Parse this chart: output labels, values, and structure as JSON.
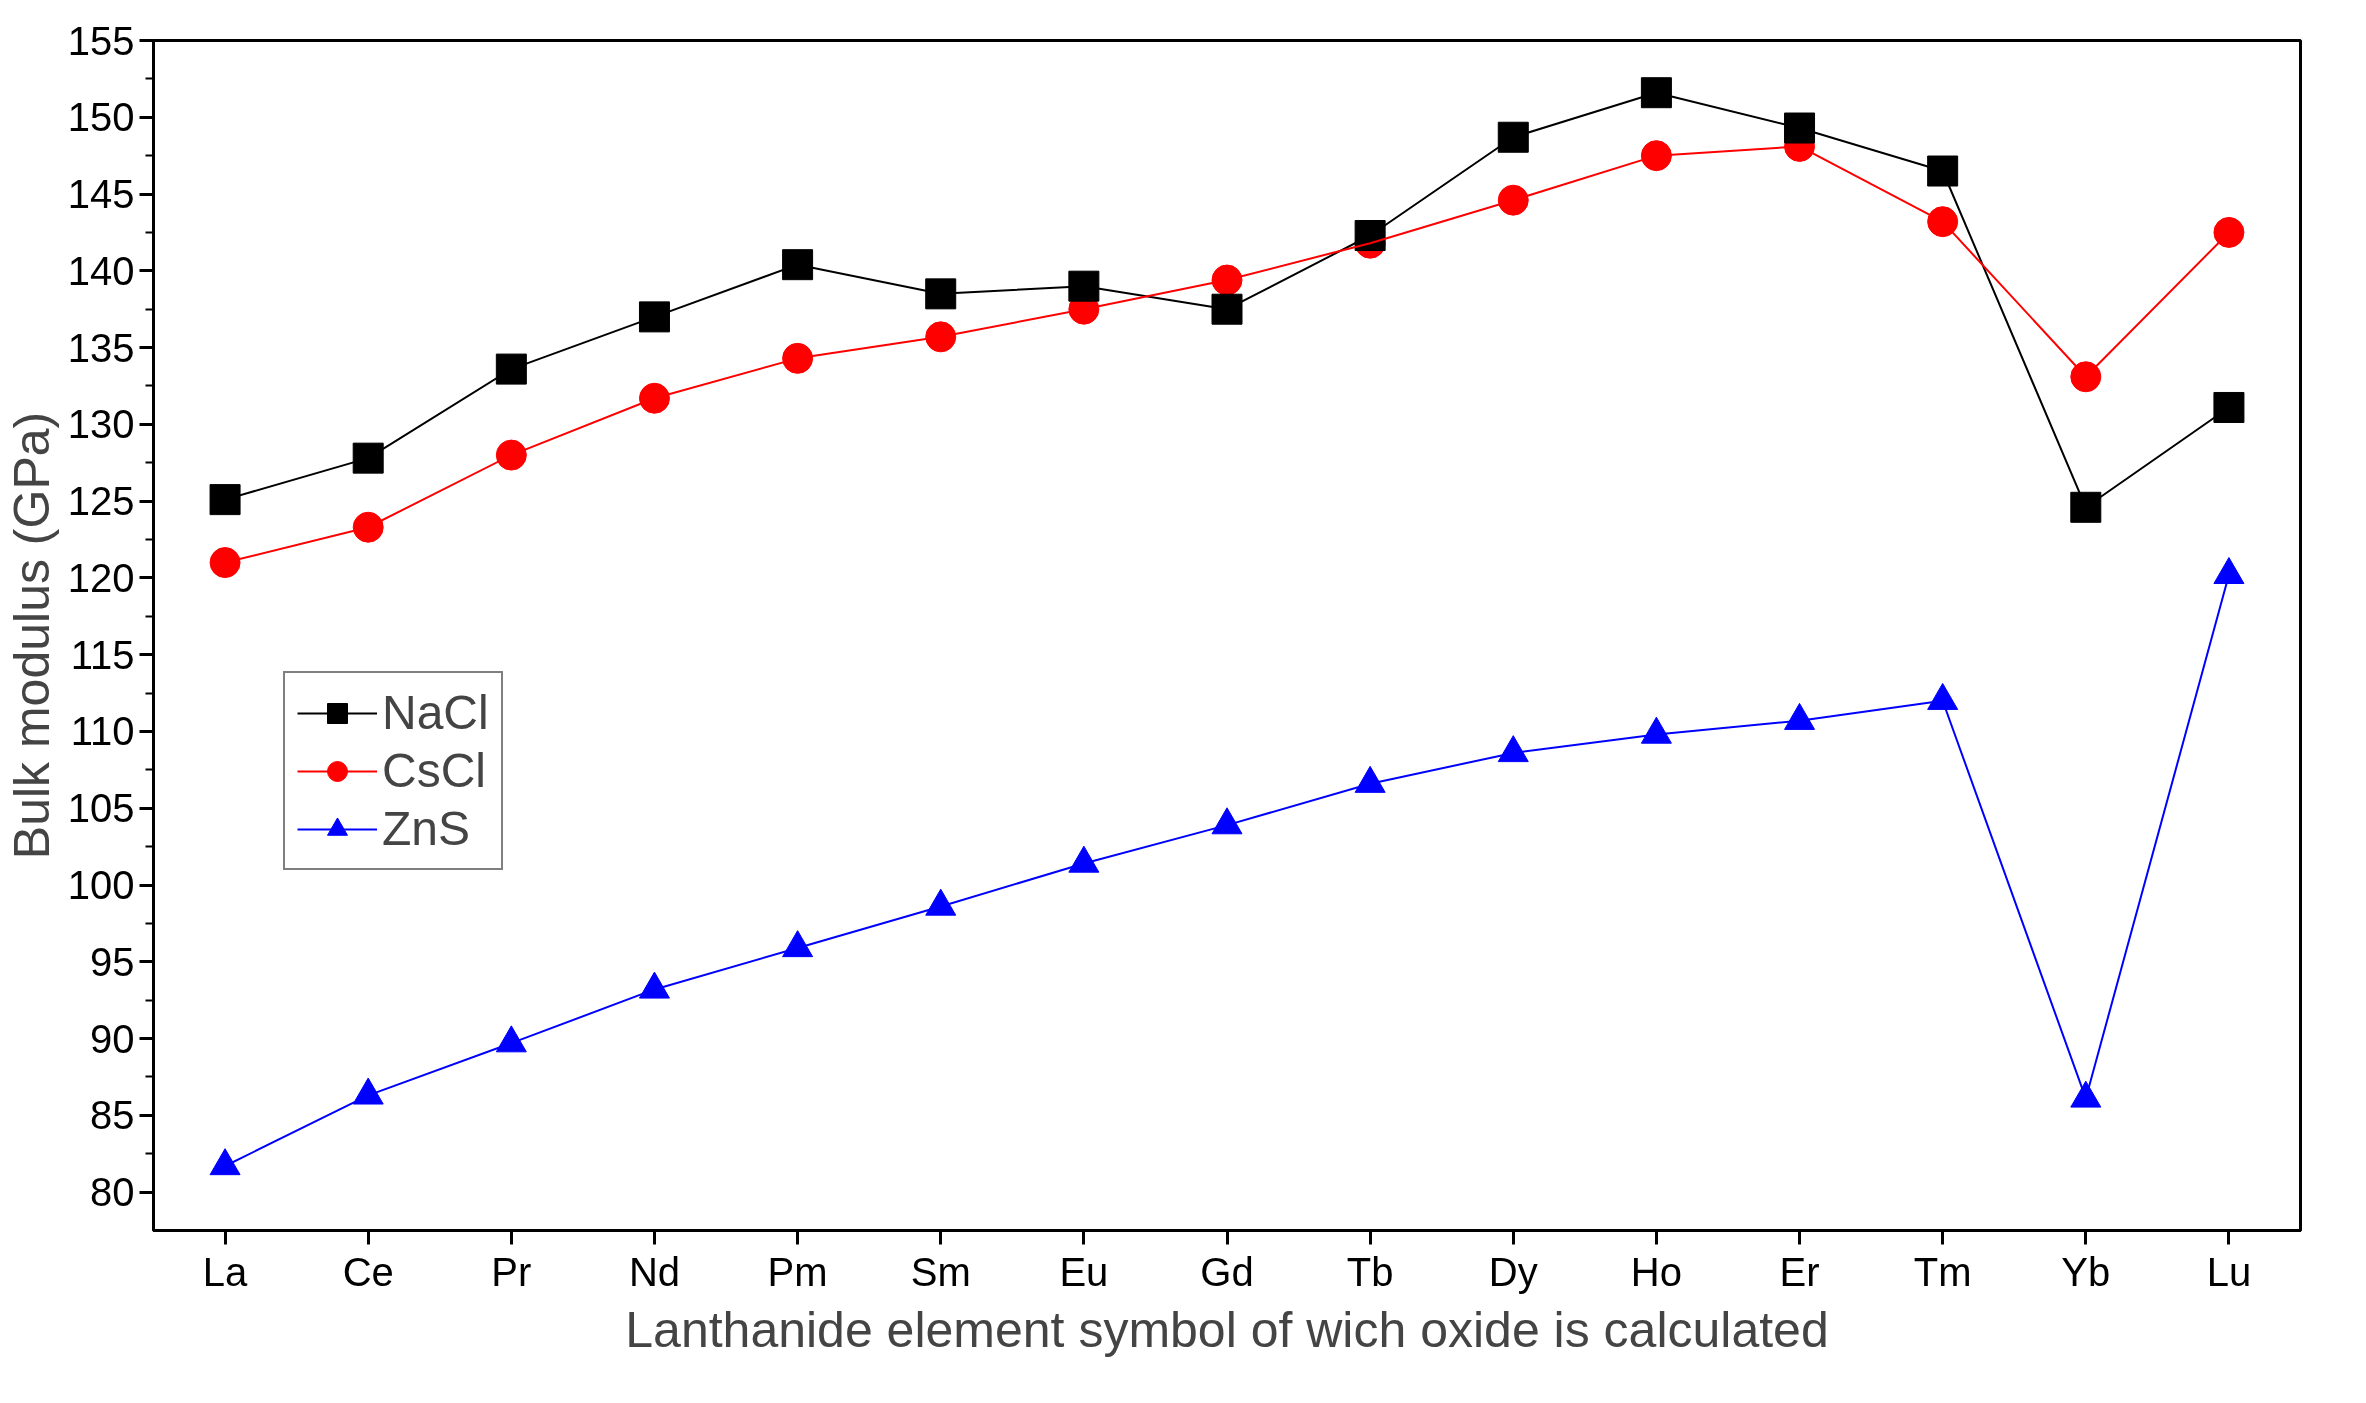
{
  "chart_data": {
    "type": "line",
    "xlabel": "Lanthanide element symbol of wich oxide is calculated",
    "ylabel": "Bulk modulus (GPa)",
    "categories": [
      "La",
      "Ce",
      "Pr",
      "Nd",
      "Pm",
      "Sm",
      "Eu",
      "Gd",
      "Tb",
      "Dy",
      "Ho",
      "Er",
      "Tm",
      "Yb",
      "Lu"
    ],
    "series": [
      {
        "name": "NaCl",
        "color": "#000000",
        "marker": "square",
        "values": [
          125.1,
          127.8,
          133.6,
          137.0,
          140.4,
          138.5,
          139.0,
          137.5,
          142.3,
          148.7,
          151.6,
          149.3,
          146.5,
          124.6,
          131.1
        ]
      },
      {
        "name": "CsCl",
        "color": "#ff0000",
        "marker": "circle",
        "values": [
          121.0,
          123.3,
          128.0,
          131.7,
          134.3,
          135.7,
          137.5,
          139.4,
          141.8,
          144.6,
          147.5,
          148.1,
          143.2,
          133.1,
          142.5
        ]
      },
      {
        "name": "ZnS",
        "color": "#0000ff",
        "marker": "triangle",
        "values": [
          81.7,
          86.3,
          89.7,
          93.2,
          95.9,
          98.6,
          101.4,
          103.9,
          106.6,
          108.6,
          109.8,
          110.7,
          112.0,
          86.1,
          120.2
        ]
      }
    ],
    "ylim": [
      77.5,
      155
    ],
    "yticks": [
      80,
      85,
      90,
      95,
      100,
      105,
      110,
      115,
      120,
      125,
      130,
      135,
      140,
      145,
      150,
      155
    ],
    "grid": false,
    "legend": "left",
    "line_style": "solid"
  }
}
